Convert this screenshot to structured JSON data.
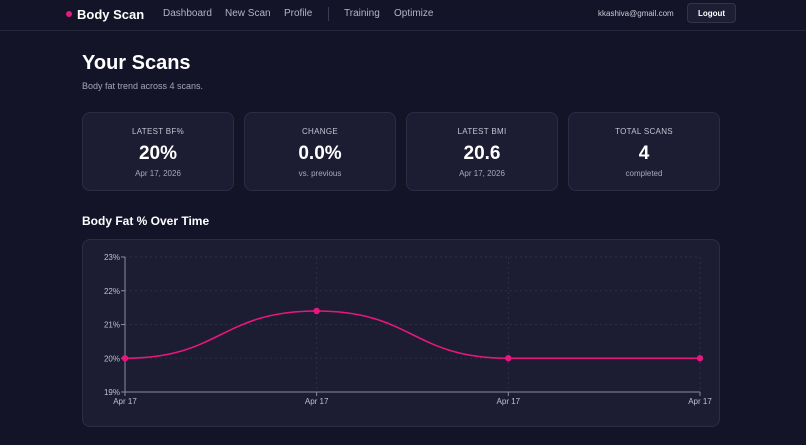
{
  "nav": {
    "brand": "Body Scan",
    "links": [
      "Dashboard",
      "New Scan",
      "Profile",
      "Training",
      "Optimize"
    ],
    "user_email": "kkashiva@gmail.com",
    "logout_label": "Logout"
  },
  "page": {
    "title": "Your Scans",
    "subtitle": "Body fat trend across 4 scans."
  },
  "stats": [
    {
      "label": "LATEST BF%",
      "value": "20%",
      "sub": "Apr 17, 2026"
    },
    {
      "label": "CHANGE",
      "value": "0.0%",
      "sub": "vs. previous"
    },
    {
      "label": "LATEST BMI",
      "value": "20.6",
      "sub": "Apr 17, 2026"
    },
    {
      "label": "TOTAL SCANS",
      "value": "4",
      "sub": "completed"
    }
  ],
  "chart_section_title": "Body Fat % Over Time",
  "colors": {
    "accent": "#e8177e",
    "background": "#141428",
    "card": "#1c1c33"
  },
  "chart_data": {
    "type": "line",
    "categories": [
      "Apr 17",
      "Apr 17",
      "Apr 17",
      "Apr 17"
    ],
    "series": [
      {
        "values": [
          20.0,
          21.4,
          20.0,
          20.0
        ]
      }
    ],
    "y_ticks": [
      "19%",
      "20%",
      "21%",
      "22%",
      "23%"
    ],
    "ylim": [
      19,
      23
    ],
    "grid": true,
    "legend": "none"
  }
}
